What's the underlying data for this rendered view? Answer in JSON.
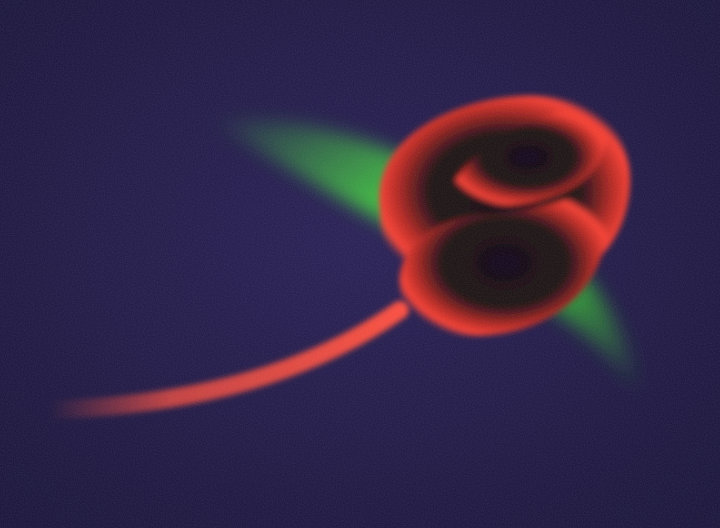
{
  "artwork": {
    "subject": "rose-bud-with-leaf",
    "colors": {
      "background": "#1c1444",
      "background_vignette": "#120c30",
      "petal_glow": "#ff3b2e",
      "petal_core": "#0b0612",
      "leaf": "#3fd63a",
      "stem": "#ff4a3a"
    }
  }
}
